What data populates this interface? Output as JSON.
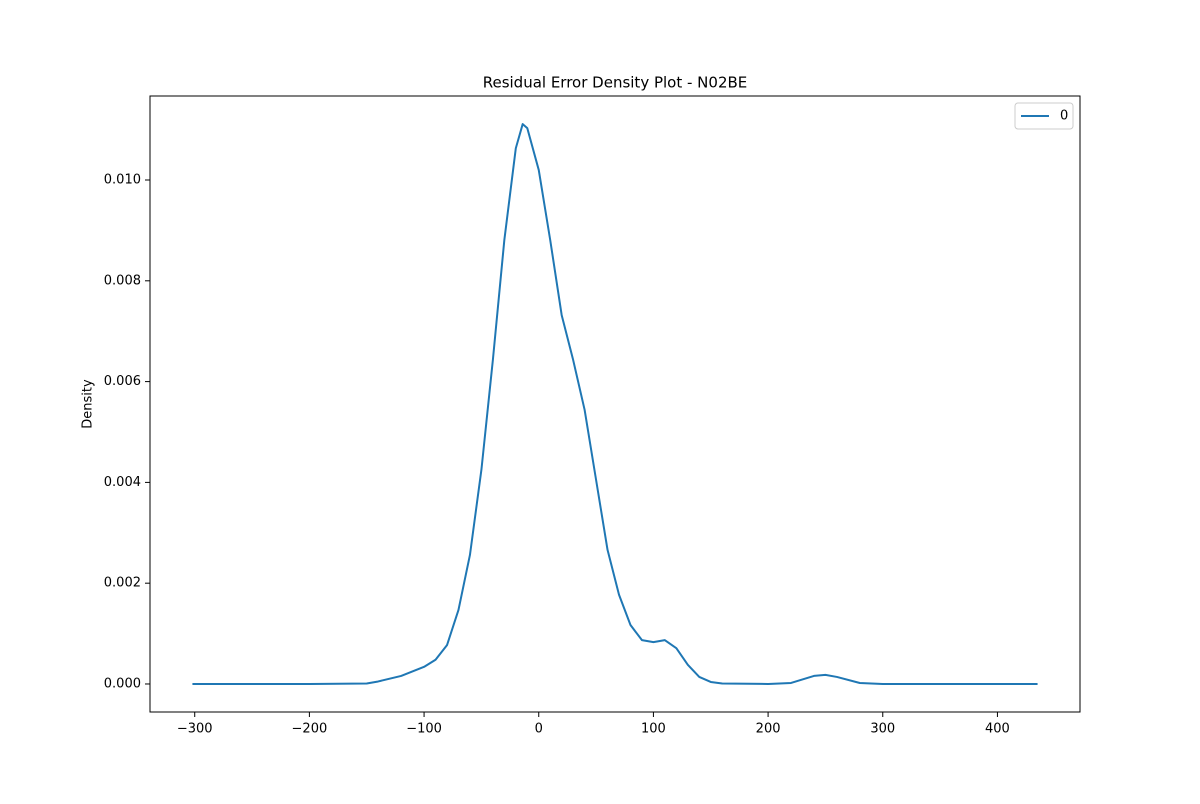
{
  "chart_data": {
    "type": "line",
    "title": "Residual Error Density Plot - N02BE",
    "y_label": "Density",
    "x": [
      -302,
      -200,
      -150,
      -140,
      -120,
      -100,
      -90,
      -80,
      -70,
      -60,
      -50,
      -40,
      -30,
      -20,
      -14,
      -10,
      0,
      10,
      20,
      30,
      40,
      50,
      60,
      70,
      80,
      90,
      100,
      110,
      120,
      130,
      140,
      150,
      160,
      200,
      220,
      240,
      250,
      260,
      280,
      300,
      435
    ],
    "series": [
      {
        "name": "0",
        "color": "#1f77b4",
        "values": [
          0,
          0,
          1e-05,
          5e-05,
          0.00016,
          0.00034,
          0.00048,
          0.00077,
          0.00147,
          0.00256,
          0.00425,
          0.00643,
          0.00881,
          0.01063,
          0.01111,
          0.01103,
          0.0102,
          0.00881,
          0.00732,
          0.00643,
          0.00544,
          0.00405,
          0.00266,
          0.00177,
          0.00117,
          0.00087,
          0.00083,
          0.00087,
          0.00071,
          0.00038,
          0.00014,
          4e-05,
          1e-05,
          0,
          2e-05,
          0.00016,
          0.00018,
          0.00014,
          2e-05,
          0,
          0
        ]
      }
    ],
    "xlim": [
      -339,
      472
    ],
    "xticks": [
      {
        "value": -300,
        "label": "−300"
      },
      {
        "value": -200,
        "label": "−200"
      },
      {
        "value": -100,
        "label": "−100"
      },
      0,
      100,
      200,
      300,
      400
    ],
    "ylim": [
      -0.000556,
      0.011667
    ],
    "yticks": [
      {
        "value": 0,
        "label": "0.000"
      },
      {
        "value": 0.002,
        "label": "0.002"
      },
      {
        "value": 0.004,
        "label": "0.004"
      },
      {
        "value": 0.006,
        "label": "0.006"
      },
      {
        "value": 0.008,
        "label": "0.008"
      },
      {
        "value": 0.01,
        "label": "0.010"
      }
    ],
    "legend": "upper right",
    "grid": false
  }
}
